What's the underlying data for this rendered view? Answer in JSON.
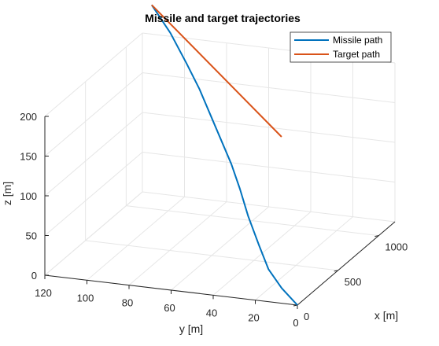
{
  "chart_data": {
    "type": "line3d",
    "title": "Missile and target trajectories",
    "xlabel": "x [m]",
    "ylabel": "y [m]",
    "zlabel": "z [m]",
    "xlim": [
      0,
      1200
    ],
    "ylim": [
      0,
      120
    ],
    "zlim": [
      0,
      200
    ],
    "xticks": [
      "0",
      "500",
      "1000"
    ],
    "yticks": [
      "0",
      "20",
      "40",
      "60",
      "80",
      "100",
      "120"
    ],
    "zticks": [
      "0",
      "50",
      "100",
      "150",
      "200"
    ],
    "grid": true,
    "legend_position": "top-right",
    "series": [
      {
        "name": "Missile path",
        "color": "#0072BD",
        "x": [
          0,
          40,
          110,
          200,
          300,
          380,
          430,
          480,
          530,
          580,
          630,
          690,
          745
        ],
        "y": [
          0,
          9,
          18,
          26,
          35,
          42,
          48,
          55,
          62,
          69,
          77,
          87,
          98
        ],
        "z": [
          0,
          15,
          30,
          50,
          75,
          100,
          125,
          150,
          175,
          200,
          225,
          255,
          282
        ]
      },
      {
        "name": "Target path",
        "color": "#D95319",
        "x": [
          1100,
          745
        ],
        "y": [
          50,
          98
        ],
        "z": [
          100,
          282
        ]
      }
    ]
  }
}
